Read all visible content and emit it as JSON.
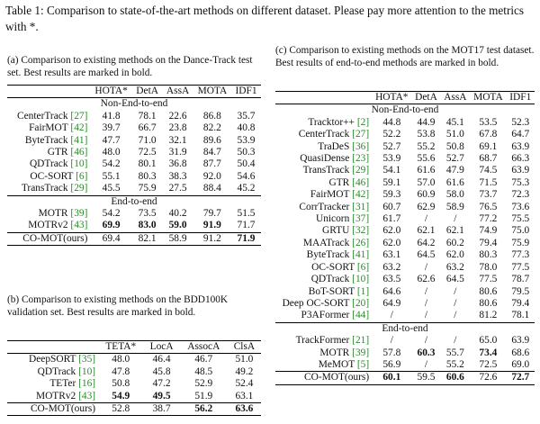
{
  "caption": "Table 1: Comparison to state-of-the-art methods on different dataset. Please pay more attention to the metrics with *.",
  "table_a": {
    "caption": "(a) Comparison to existing methods on the Dance-Track test set. Best results are marked in bold.",
    "headers": [
      "",
      "HOTA*",
      "DetA",
      "AssA",
      "MOTA",
      "IDF1"
    ],
    "section1": "Non-End-to-end",
    "section2": "End-to-end",
    "rows1": [
      {
        "m": "CenterTrack",
        "r": "[27]",
        "v": [
          "41.8",
          "78.1",
          "22.6",
          "86.8",
          "35.7"
        ]
      },
      {
        "m": "FairMOT",
        "r": "[42]",
        "v": [
          "39.7",
          "66.7",
          "23.8",
          "82.2",
          "40.8"
        ]
      },
      {
        "m": "ByteTrack",
        "r": "[41]",
        "v": [
          "47.7",
          "71.0",
          "32.1",
          "89.6",
          "53.9"
        ]
      },
      {
        "m": "GTR",
        "r": "[46]",
        "v": [
          "48.0",
          "72.5",
          "31.9",
          "84.7",
          "50.3"
        ]
      },
      {
        "m": "QDTrack",
        "r": "[10]",
        "v": [
          "54.2",
          "80.1",
          "36.8",
          "87.7",
          "50.4"
        ]
      },
      {
        "m": "OC-SORT",
        "r": "[6]",
        "v": [
          "55.1",
          "80.3",
          "38.3",
          "92.0",
          "54.6"
        ]
      },
      {
        "m": "TransTrack",
        "r": "[29]",
        "v": [
          "45.5",
          "75.9",
          "27.5",
          "88.4",
          "45.2"
        ]
      }
    ],
    "rows2": [
      {
        "m": "MOTR",
        "r": "[39]",
        "v": [
          "54.2",
          "73.5",
          "40.2",
          "79.7",
          "51.5"
        ]
      },
      {
        "m": "MOTRv2",
        "r": "[43]",
        "v": [
          "69.9",
          "83.0",
          "59.0",
          "91.9",
          "71.7"
        ]
      }
    ],
    "final": {
      "m": "CO-MOT(ours)",
      "v": [
        "69.4",
        "82.1",
        "58.9",
        "91.2",
        "71.9"
      ]
    }
  },
  "table_b": {
    "caption": "(b) Comparison to existing methods on the BDD100K validation set. Best results are marked in bold.",
    "headers": [
      "",
      "TETA*",
      "LocA",
      "AssocA",
      "ClsA"
    ],
    "rows": [
      {
        "m": "DeepSORT",
        "r": "[35]",
        "v": [
          "48.0",
          "46.4",
          "46.7",
          "51.0"
        ]
      },
      {
        "m": "QDTrack",
        "r": "[10]",
        "v": [
          "47.8",
          "45.8",
          "48.5",
          "49.2"
        ]
      },
      {
        "m": "TETer",
        "r": "[16]",
        "v": [
          "50.8",
          "47.2",
          "52.9",
          "52.4"
        ]
      },
      {
        "m": "MOTRv2",
        "r": "[43]",
        "v": [
          "54.9",
          "49.5",
          "51.9",
          "63.1"
        ]
      }
    ],
    "final": {
      "m": "CO-MOT(ours)",
      "v": [
        "52.8",
        "38.7",
        "56.2",
        "63.6"
      ]
    }
  },
  "table_c": {
    "caption": "(c) Comparison to existing methods on the MOT17 test dataset. Best results of end-to-end methods are marked in bold.",
    "headers": [
      "",
      "HOTA*",
      "DetA",
      "AssA",
      "MOTA",
      "IDF1"
    ],
    "section1": "Non-End-to-end",
    "section2": "End-to-end",
    "rows1": [
      {
        "m": "Tracktor++",
        "r": "[2]",
        "v": [
          "44.8",
          "44.9",
          "45.1",
          "53.5",
          "52.3"
        ]
      },
      {
        "m": "CenterTrack",
        "r": "[27]",
        "v": [
          "52.2",
          "53.8",
          "51.0",
          "67.8",
          "64.7"
        ]
      },
      {
        "m": "TraDeS",
        "r": "[36]",
        "v": [
          "52.7",
          "55.2",
          "50.8",
          "69.1",
          "63.9"
        ]
      },
      {
        "m": "QuasiDense",
        "r": "[23]",
        "v": [
          "53.9",
          "55.6",
          "52.7",
          "68.7",
          "66.3"
        ]
      },
      {
        "m": "TransTrack",
        "r": "[29]",
        "v": [
          "54.1",
          "61.6",
          "47.9",
          "74.5",
          "63.9"
        ]
      },
      {
        "m": "GTR",
        "r": "[46]",
        "v": [
          "59.1",
          "57.0",
          "61.6",
          "71.5",
          "75.3"
        ]
      },
      {
        "m": "FairMOT",
        "r": "[42]",
        "v": [
          "59.3",
          "60.9",
          "58.0",
          "73.7",
          "72.3"
        ]
      },
      {
        "m": "CorrTracker",
        "r": "[31]",
        "v": [
          "60.7",
          "62.9",
          "58.9",
          "76.5",
          "73.6"
        ]
      },
      {
        "m": "Unicorn",
        "r": "[37]",
        "v": [
          "61.7",
          "/",
          "/",
          "77.2",
          "75.5"
        ]
      },
      {
        "m": "GRTU",
        "r": "[32]",
        "v": [
          "62.0",
          "62.1",
          "62.1",
          "74.9",
          "75.0"
        ]
      },
      {
        "m": "MAATrack",
        "r": "[26]",
        "v": [
          "62.0",
          "64.2",
          "60.2",
          "79.4",
          "75.9"
        ]
      },
      {
        "m": "ByteTrack",
        "r": "[41]",
        "v": [
          "63.1",
          "64.5",
          "62.0",
          "80.3",
          "77.3"
        ]
      },
      {
        "m": "OC-SORT",
        "r": "[6]",
        "v": [
          "63.2",
          "/",
          "63.2",
          "78.0",
          "77.5"
        ]
      },
      {
        "m": "QDTrack",
        "r": "[10]",
        "v": [
          "63.5",
          "62.6",
          "64.5",
          "77.5",
          "78.7"
        ]
      },
      {
        "m": "BoT-SORT",
        "r": "[1]",
        "v": [
          "64.6",
          "/",
          "/",
          "80.6",
          "79.5"
        ]
      },
      {
        "m": "Deep OC-SORT",
        "r": "[20]",
        "v": [
          "64.9",
          "/",
          "/",
          "80.6",
          "79.4"
        ]
      },
      {
        "m": "P3AFormer",
        "r": "[44]",
        "v": [
          "/",
          "/",
          "/",
          "81.2",
          "78.1"
        ]
      }
    ],
    "rows2": [
      {
        "m": "TrackFormer",
        "r": "[21]",
        "v": [
          "/",
          "/",
          "/",
          "65.0",
          "63.9"
        ]
      },
      {
        "m": "MOTR",
        "r": "[39]",
        "v": [
          "57.8",
          "60.3",
          "55.7",
          "73.4",
          "68.6"
        ]
      },
      {
        "m": "MeMOT",
        "r": "[5]",
        "v": [
          "56.9",
          "/",
          "55.2",
          "72.5",
          "69.0"
        ]
      }
    ],
    "final": {
      "m": "CO-MOT(ours)",
      "v": [
        "60.1",
        "59.5",
        "60.6",
        "72.6",
        "72.7"
      ]
    }
  }
}
